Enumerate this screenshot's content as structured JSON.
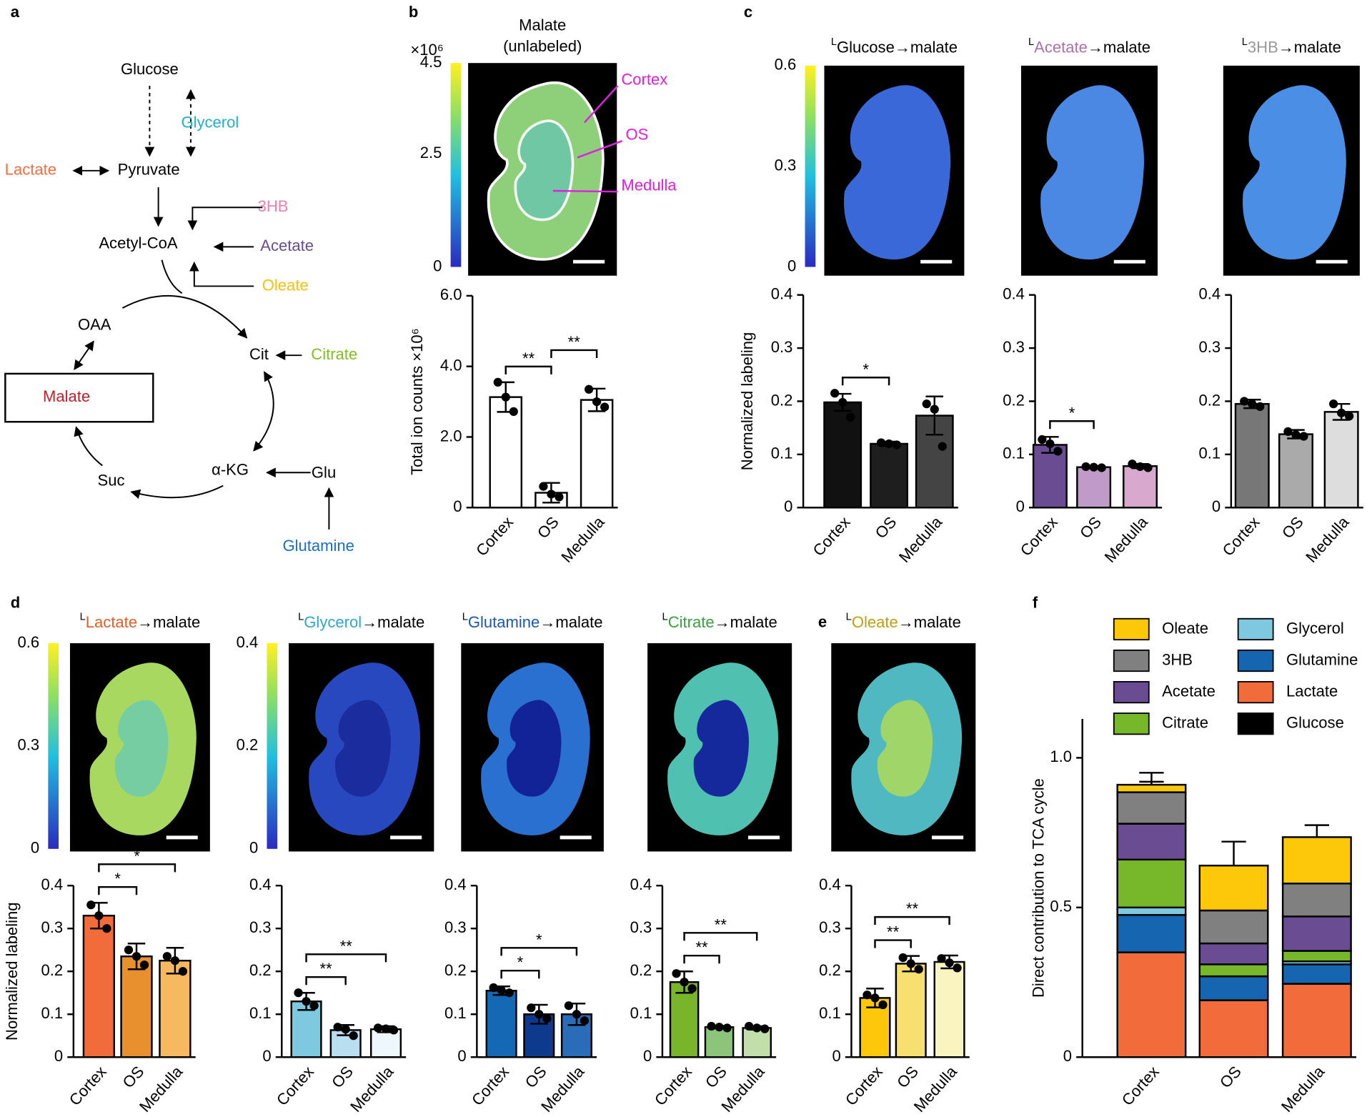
{
  "panel_labels": [
    "a",
    "b",
    "c",
    "d",
    "e",
    "f"
  ],
  "diagram": {
    "nodes": [
      {
        "label": "Glucose",
        "color": "#000000"
      },
      {
        "label": "Glycerol",
        "color": "#20b0d0"
      },
      {
        "label": "Lactate",
        "color": "#f07040"
      },
      {
        "label": "Pyruvate",
        "color": "#000000"
      },
      {
        "label": "3HB",
        "color": "#f080b0"
      },
      {
        "label": "Acetyl-CoA",
        "color": "#000000"
      },
      {
        "label": "Acetate",
        "color": "#6a4c93"
      },
      {
        "label": "Oleate",
        "color": "#f8c010"
      },
      {
        "label": "OAA",
        "color": "#000000"
      },
      {
        "label": "Cit",
        "color": "#000000"
      },
      {
        "label": "Citrate",
        "color": "#80c020"
      },
      {
        "label": "Malate",
        "color": "#c0202a"
      },
      {
        "label": "α-KG",
        "color": "#000000"
      },
      {
        "label": "Glu",
        "color": "#000000"
      },
      {
        "label": "Suc",
        "color": "#000000"
      },
      {
        "label": "Glutamine",
        "color": "#1a70c0"
      }
    ]
  },
  "images": [
    {
      "title_lines": [
        "Malate",
        "(unlabeled)"
      ],
      "colorbar": {
        "label": "×10⁶",
        "lim": [
          0,
          4.5
        ],
        "ticks": [
          0,
          2.5,
          4.5
        ]
      },
      "annotations": [
        "Cortex",
        "OS",
        "Medulla"
      ]
    },
    {
      "title_parts": [
        {
          "text": "L",
          "color": "#000000"
        },
        {
          "text": "Glucose",
          "color": "#000000"
        },
        {
          "text": "→malate",
          "color": "#000000"
        }
      ],
      "colorbar": {
        "lim": [
          0,
          0.6
        ],
        "ticks": [
          0,
          0.3,
          0.6
        ]
      }
    },
    {
      "title_parts": [
        {
          "text": "L",
          "color": "#000000"
        },
        {
          "text": "Acetate",
          "color": "#b070b0"
        },
        {
          "text": "→malate",
          "color": "#000000"
        }
      ]
    },
    {
      "title_parts": [
        {
          "text": "L",
          "color": "#000000"
        },
        {
          "text": "3HB",
          "color": "#999999"
        },
        {
          "text": "→malate",
          "color": "#000000"
        }
      ]
    },
    {
      "title_parts": [
        {
          "text": "L",
          "color": "#000000"
        },
        {
          "text": "Lactate",
          "color": "#e0602a"
        },
        {
          "text": "→malate",
          "color": "#000000"
        }
      ],
      "colorbar": {
        "lim": [
          0,
          0.6
        ],
        "ticks": [
          0,
          0.3,
          0.6
        ]
      }
    },
    {
      "title_parts": [
        {
          "text": "L",
          "color": "#000000"
        },
        {
          "text": "Glycerol",
          "color": "#30a8d0"
        },
        {
          "text": "→malate",
          "color": "#000000"
        }
      ],
      "colorbar": {
        "lim": [
          0,
          0.4
        ],
        "ticks": [
          0,
          0.2,
          0.4
        ]
      }
    },
    {
      "title_parts": [
        {
          "text": "L",
          "color": "#000000"
        },
        {
          "text": "Glutamine",
          "color": "#1a5aa8"
        },
        {
          "text": "→malate",
          "color": "#000000"
        }
      ]
    },
    {
      "title_parts": [
        {
          "text": "L",
          "color": "#000000"
        },
        {
          "text": "Citrate",
          "color": "#3aa040"
        },
        {
          "text": "→malate",
          "color": "#000000"
        }
      ]
    },
    {
      "title_parts": [
        {
          "text": "L",
          "color": "#000000"
        },
        {
          "text": "Oleate",
          "color": "#c0a010"
        },
        {
          "text": "→malate",
          "color": "#000000"
        }
      ]
    }
  ],
  "chart_data": [
    {
      "type": "bar",
      "categories": [
        "Cortex",
        "OS",
        "Medulla"
      ],
      "values": [
        3.13,
        0.42,
        3.05
      ],
      "errors": [
        0.42,
        0.28,
        0.32
      ],
      "points": [
        [
          3.55,
          3.13,
          2.72
        ],
        [
          0.6,
          0.38,
          0.3
        ],
        [
          3.35,
          3.0,
          2.85
        ]
      ],
      "colors": [
        "#ffffff",
        "#ffffff",
        "#ffffff"
      ],
      "ylim": [
        0,
        6
      ],
      "yticks": [
        0,
        {
          "value": 2,
          "label": "2.0"
        },
        {
          "value": 4,
          "label": "4.0"
        },
        {
          "value": 6,
          "label": "6.0"
        }
      ],
      "ylabel": "Total ion counts ×10⁶",
      "significance": [
        {
          "pair": [
            0,
            1
          ],
          "label": "**"
        },
        {
          "pair": [
            1,
            2
          ],
          "label": "**"
        }
      ]
    },
    {
      "type": "bar",
      "categories": [
        "Cortex",
        "OS",
        "Medulla"
      ],
      "values": [
        0.198,
        0.12,
        0.173
      ],
      "errors": [
        0.016,
        0.004,
        0.036
      ],
      "points": [
        [
          0.215,
          0.198,
          0.17
        ],
        [
          0.122,
          0.12,
          0.118
        ],
        [
          0.195,
          0.185,
          0.115
        ]
      ],
      "colors": [
        "#111111",
        "#1e1e1e",
        "#444444"
      ],
      "ylim": [
        0,
        0.4
      ],
      "yticks": [
        0,
        0.1,
        0.2,
        0.3,
        0.4
      ],
      "ylabel": "Normalized labeling",
      "significance": [
        {
          "pair": [
            0,
            1
          ],
          "label": "*"
        }
      ]
    },
    {
      "type": "bar",
      "categories": [
        "Cortex",
        "OS",
        "Medulla"
      ],
      "values": [
        0.118,
        0.076,
        0.078
      ],
      "errors": [
        0.015,
        0.002,
        0.004
      ],
      "points": [
        [
          0.128,
          0.12,
          0.106
        ],
        [
          0.077,
          0.076,
          0.075
        ],
        [
          0.082,
          0.077,
          0.075
        ]
      ],
      "colors": [
        "#6a4c93",
        "#c09ac8",
        "#d8a8cf"
      ],
      "ylim": [
        0,
        0.4
      ],
      "yticks": [
        0,
        0.1,
        0.2,
        0.3,
        0.4
      ],
      "significance": [
        {
          "pair": [
            0,
            1
          ],
          "label": "*"
        }
      ]
    },
    {
      "type": "bar",
      "categories": [
        "Cortex",
        "OS",
        "Medulla"
      ],
      "values": [
        0.195,
        0.138,
        0.18
      ],
      "errors": [
        0.008,
        0.008,
        0.015
      ],
      "points": [
        [
          0.2,
          0.195,
          0.19
        ],
        [
          0.143,
          0.137,
          0.134
        ],
        [
          0.195,
          0.178,
          0.172
        ]
      ],
      "colors": [
        "#777777",
        "#aaaaaa",
        "#dddddd"
      ],
      "ylim": [
        0,
        0.4
      ],
      "yticks": [
        0,
        0.1,
        0.2,
        0.3,
        0.4
      ],
      "significance": []
    },
    {
      "type": "bar",
      "categories": [
        "Cortex",
        "OS",
        "Medulla"
      ],
      "values": [
        0.33,
        0.235,
        0.225
      ],
      "errors": [
        0.03,
        0.03,
        0.03
      ],
      "points": [
        [
          0.355,
          0.33,
          0.3
        ],
        [
          0.25,
          0.235,
          0.215
        ],
        [
          0.235,
          0.225,
          0.2
        ]
      ],
      "colors": [
        "#f26b3a",
        "#e8902e",
        "#f6b960"
      ],
      "ylim": [
        0,
        0.4
      ],
      "yticks": [
        0,
        0.1,
        0.2,
        0.3,
        0.4
      ],
      "ylabel": "Normalized labeling",
      "significance": [
        {
          "pair": [
            0,
            1
          ],
          "label": "*"
        },
        {
          "pair": [
            0,
            2
          ],
          "label": "*"
        }
      ]
    },
    {
      "type": "bar",
      "categories": [
        "Cortex",
        "OS",
        "Medulla"
      ],
      "values": [
        0.13,
        0.063,
        0.065
      ],
      "errors": [
        0.02,
        0.012,
        0.007
      ],
      "points": [
        [
          0.15,
          0.13,
          0.12
        ],
        [
          0.07,
          0.065,
          0.05
        ],
        [
          0.068,
          0.066,
          0.063
        ]
      ],
      "colors": [
        "#7ec8e0",
        "#b8def0",
        "#eef8fc"
      ],
      "ylim": [
        0,
        0.4
      ],
      "yticks": [
        0,
        0.1,
        0.2,
        0.3,
        0.4
      ],
      "significance": [
        {
          "pair": [
            0,
            1
          ],
          "label": "**"
        },
        {
          "pair": [
            0,
            2
          ],
          "label": "**"
        }
      ]
    },
    {
      "type": "bar",
      "categories": [
        "Cortex",
        "OS",
        "Medulla"
      ],
      "values": [
        0.155,
        0.1,
        0.1
      ],
      "errors": [
        0.01,
        0.022,
        0.025
      ],
      "points": [
        [
          0.162,
          0.156,
          0.15
        ],
        [
          0.115,
          0.1,
          0.09
        ],
        [
          0.12,
          0.1,
          0.085
        ]
      ],
      "colors": [
        "#1568b4",
        "#0d3a8c",
        "#2a6cb8"
      ],
      "ylim": [
        0,
        0.4
      ],
      "yticks": [
        0,
        0.1,
        0.2,
        0.3,
        0.4
      ],
      "significance": [
        {
          "pair": [
            0,
            1
          ],
          "label": "*"
        },
        {
          "pair": [
            0,
            2
          ],
          "label": "*"
        }
      ]
    },
    {
      "type": "bar",
      "categories": [
        "Cortex",
        "OS",
        "Medulla"
      ],
      "values": [
        0.175,
        0.07,
        0.068
      ],
      "errors": [
        0.025,
        0.003,
        0.004
      ],
      "points": [
        [
          0.195,
          0.175,
          0.16
        ],
        [
          0.072,
          0.07,
          0.068
        ],
        [
          0.072,
          0.068,
          0.066
        ]
      ],
      "colors": [
        "#79b52a",
        "#8cc47a",
        "#c2deaa"
      ],
      "ylim": [
        0,
        0.4
      ],
      "yticks": [
        0,
        0.1,
        0.2,
        0.3,
        0.4
      ],
      "significance": [
        {
          "pair": [
            0,
            1
          ],
          "label": "**"
        },
        {
          "pair": [
            0,
            2
          ],
          "label": "**"
        }
      ]
    },
    {
      "type": "bar",
      "categories": [
        "Cortex",
        "OS",
        "Medulla"
      ],
      "values": [
        0.138,
        0.218,
        0.222
      ],
      "errors": [
        0.022,
        0.018,
        0.015
      ],
      "points": [
        [
          0.145,
          0.138,
          0.122
        ],
        [
          0.232,
          0.218,
          0.205
        ],
        [
          0.23,
          0.22,
          0.208
        ]
      ],
      "colors": [
        "#fdc80a",
        "#f8e070",
        "#faf5c0"
      ],
      "ylim": [
        0,
        0.4
      ],
      "yticks": [
        0,
        0.1,
        0.2,
        0.3,
        0.4
      ],
      "significance": [
        {
          "pair": [
            0,
            1
          ],
          "label": "**"
        },
        {
          "pair": [
            0,
            2
          ],
          "label": "**"
        }
      ]
    },
    {
      "type": "stacked_bar",
      "categories": [
        "Cortex",
        "OS",
        "Medulla"
      ],
      "ylim": [
        0,
        1.13
      ],
      "yticks": [
        0,
        0.5,
        {
          "value": 1,
          "label": "1.0"
        }
      ],
      "ylabel": "Direct contribution to TCA cycle",
      "series": [
        {
          "name": "Glucose",
          "color": "#000000",
          "values": [
            0,
            0,
            0
          ],
          "errors": [
            0,
            0,
            0
          ]
        },
        {
          "name": "Lactate",
          "color": "#f26b3a",
          "values": [
            0.35,
            0.19,
            0.245
          ],
          "errors": [
            0.04,
            0.02,
            0.01
          ]
        },
        {
          "name": "Glutamine",
          "color": "#1565b0",
          "values": [
            0.125,
            0.08,
            0.065
          ],
          "errors": [
            0.03,
            0.01,
            0.02
          ]
        },
        {
          "name": "Glycerol",
          "color": "#7ec8e0",
          "values": [
            0.025,
            0,
            0.01
          ],
          "errors": [
            0.01,
            0,
            0
          ]
        },
        {
          "name": "Citrate",
          "color": "#76b82a",
          "values": [
            0.16,
            0.04,
            0.035
          ],
          "errors": [
            0.02,
            0.02,
            0.03
          ]
        },
        {
          "name": "Acetate",
          "color": "#6a4c93",
          "values": [
            0.12,
            0.07,
            0.115
          ],
          "errors": [
            0.02,
            0.01,
            0.05
          ]
        },
        {
          "name": "3HB",
          "color": "#808080",
          "values": [
            0.105,
            0.11,
            0.11
          ],
          "errors": [
            0.035,
            0.01,
            0.1
          ]
        },
        {
          "name": "Oleate",
          "color": "#fdc80a",
          "values": [
            0.025,
            0.15,
            0.155
          ],
          "errors": [
            0.04,
            0.08,
            0.04
          ]
        }
      ]
    }
  ]
}
